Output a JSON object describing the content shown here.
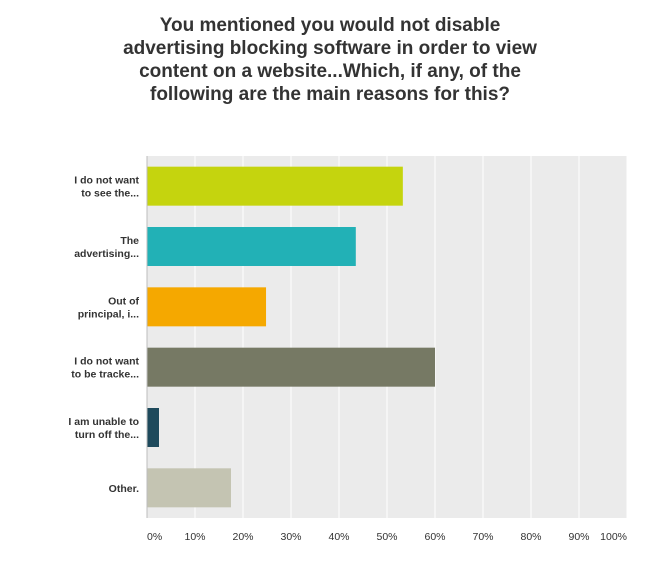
{
  "chart_data": {
    "type": "bar",
    "orientation": "horizontal",
    "title": "You mentioned you would not disable advertising blocking software in order to view content on a website...Which, if any, of the following are the main reasons for this?",
    "categories": [
      [
        "I do not want",
        "to see the..."
      ],
      [
        "The",
        "advertising..."
      ],
      [
        "Out of",
        "principal, i..."
      ],
      [
        "I do not want",
        "to be tracke..."
      ],
      [
        "I am unable to",
        "turn off the..."
      ],
      [
        "Other."
      ]
    ],
    "values": [
      53.3,
      43.5,
      24.8,
      60.0,
      2.5,
      17.5
    ],
    "colors": [
      "#c5d40e",
      "#22b1b6",
      "#f5a800",
      "#767964",
      "#1e4a5c",
      "#c4c4b2"
    ],
    "xlim": [
      0,
      100
    ],
    "xticks": [
      0,
      10,
      20,
      30,
      40,
      50,
      60,
      70,
      80,
      90,
      100
    ],
    "xtick_labels": [
      "0%",
      "10%",
      "20%",
      "30%",
      "40%",
      "50%",
      "60%",
      "70%",
      "80%",
      "90%",
      "100%"
    ],
    "xlabel": "",
    "ylabel": "",
    "grid": true,
    "plot_background": "#ebebeb",
    "grid_color": "#ffffff"
  }
}
